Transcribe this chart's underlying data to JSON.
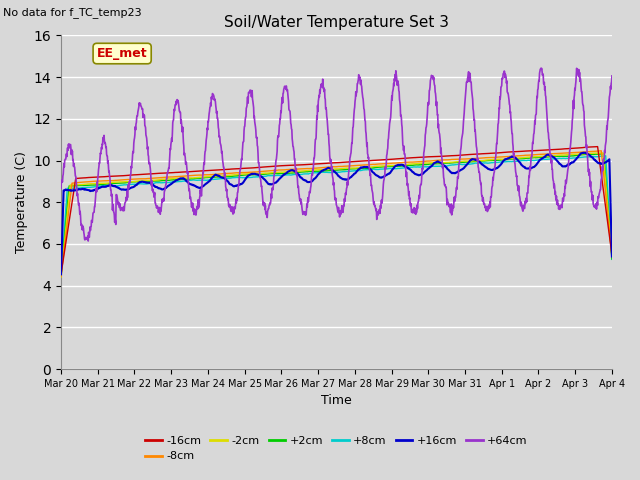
{
  "title": "Soil/Water Temperature Set 3",
  "subtitle": "No data for f_TC_temp23",
  "xlabel": "Time",
  "ylabel": "Temperature (C)",
  "ylim": [
    0,
    16
  ],
  "yticks": [
    0,
    2,
    4,
    6,
    8,
    10,
    12,
    14,
    16
  ],
  "legend_box_label": "EE_met",
  "bg_color": "#d8d8d8",
  "plot_bg_color": "#d8d8d8",
  "series": {
    "-16cm": {
      "color": "#cc0000",
      "lw": 1.0
    },
    "-8cm": {
      "color": "#ff8800",
      "lw": 1.0
    },
    "-2cm": {
      "color": "#dddd00",
      "lw": 1.0
    },
    "+2cm": {
      "color": "#00cc00",
      "lw": 1.0
    },
    "+8cm": {
      "color": "#00cccc",
      "lw": 1.0
    },
    "+16cm": {
      "color": "#0000cc",
      "lw": 1.5
    },
    "+64cm": {
      "color": "#9933cc",
      "lw": 1.2
    }
  },
  "tick_labels": [
    "Mar 20",
    "Mar 21",
    "Mar 22",
    "Mar 23",
    "Mar 24",
    "Mar 25",
    "Mar 26",
    "Mar 27",
    "Mar 28",
    "Mar 29",
    "Mar 30",
    "Mar 31",
    "Apr 1",
    "Apr 2",
    "Apr 3",
    "Apr 4"
  ]
}
